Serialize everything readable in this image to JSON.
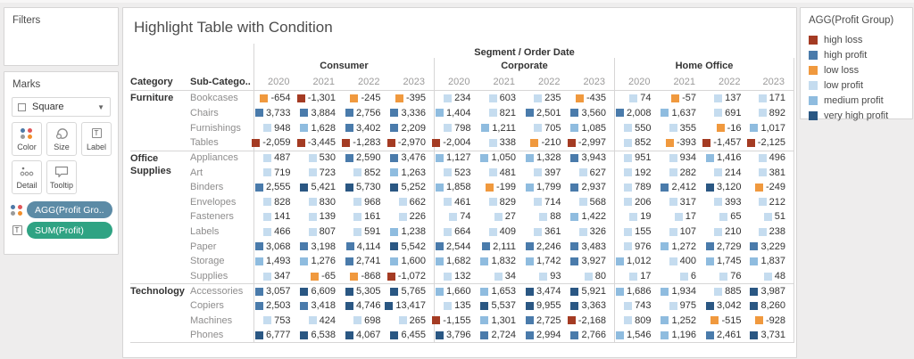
{
  "filters": {
    "title": "Filters"
  },
  "marks": {
    "title": "Marks",
    "mark_type": "Square",
    "buttons_row1": [
      {
        "label": "Color",
        "icon": "color-dots-icon"
      },
      {
        "label": "Size",
        "icon": "size-icon"
      },
      {
        "label": "Label",
        "icon": "label-icon"
      }
    ],
    "buttons_row2": [
      {
        "label": "Detail",
        "icon": "detail-icon"
      },
      {
        "label": "Tooltip",
        "icon": "tooltip-icon"
      }
    ],
    "pills": [
      {
        "label": "AGG(Profit Gro..",
        "color": "#5C8BA6",
        "icon": "color-dots-icon"
      },
      {
        "label": "SUM(Profit)",
        "color": "#2FA383",
        "icon": "text-icon"
      }
    ]
  },
  "sheet": {
    "title": "Highlight Table with Condition",
    "axis_title": "Segment / Order Date",
    "segments": [
      "Consumer",
      "Corporate",
      "Home Office"
    ],
    "years": [
      "2020",
      "2021",
      "2022",
      "2023"
    ],
    "category_header": "Category",
    "subcategory_header": "Sub-Catego..",
    "groups": [
      {
        "category": "Furniture",
        "rows": [
          {
            "name": "Bookcases",
            "cells": [
              [
                "-654",
                "LL"
              ],
              [
                "-1,301",
                "HL"
              ],
              [
                "-245",
                "LL"
              ],
              [
                "-395",
                "LL"
              ],
              [
                "234",
                "LP"
              ],
              [
                "603",
                "LP"
              ],
              [
                "235",
                "LP"
              ],
              [
                "-435",
                "LL"
              ],
              [
                "74",
                "LP"
              ],
              [
                "-57",
                "LL"
              ],
              [
                "137",
                "LP"
              ],
              [
                "171",
                "LP"
              ]
            ]
          },
          {
            "name": "Chairs",
            "cells": [
              [
                "3,733",
                "HP"
              ],
              [
                "3,884",
                "HP"
              ],
              [
                "2,756",
                "HP"
              ],
              [
                "3,336",
                "HP"
              ],
              [
                "1,404",
                "MP"
              ],
              [
                "821",
                "LP"
              ],
              [
                "2,501",
                "HP"
              ],
              [
                "3,560",
                "HP"
              ],
              [
                "2,008",
                "HP"
              ],
              [
                "1,637",
                "MP"
              ],
              [
                "691",
                "LP"
              ],
              [
                "892",
                "LP"
              ]
            ]
          },
          {
            "name": "Furnishings",
            "cells": [
              [
                "948",
                "LP"
              ],
              [
                "1,628",
                "MP"
              ],
              [
                "3,402",
                "HP"
              ],
              [
                "2,209",
                "HP"
              ],
              [
                "798",
                "LP"
              ],
              [
                "1,211",
                "MP"
              ],
              [
                "705",
                "LP"
              ],
              [
                "1,085",
                "MP"
              ],
              [
                "550",
                "LP"
              ],
              [
                "355",
                "LP"
              ],
              [
                "-16",
                "LL"
              ],
              [
                "1,017",
                "MP"
              ]
            ]
          },
          {
            "name": "Tables",
            "cells": [
              [
                "-2,059",
                "HL"
              ],
              [
                "-3,445",
                "HL"
              ],
              [
                "-1,283",
                "HL"
              ],
              [
                "-2,970",
                "HL"
              ],
              [
                "-2,004",
                "HL"
              ],
              [
                "338",
                "LP"
              ],
              [
                "-210",
                "LL"
              ],
              [
                "-2,997",
                "HL"
              ],
              [
                "852",
                "LP"
              ],
              [
                "-393",
                "LL"
              ],
              [
                "-1,457",
                "HL"
              ],
              [
                "-2,125",
                "HL"
              ]
            ]
          }
        ]
      },
      {
        "category": "Office Supplies",
        "rows": [
          {
            "name": "Appliances",
            "cells": [
              [
                "487",
                "LP"
              ],
              [
                "530",
                "LP"
              ],
              [
                "2,590",
                "HP"
              ],
              [
                "3,476",
                "HP"
              ],
              [
                "1,127",
                "MP"
              ],
              [
                "1,050",
                "MP"
              ],
              [
                "1,328",
                "MP"
              ],
              [
                "3,943",
                "HP"
              ],
              [
                "951",
                "LP"
              ],
              [
                "934",
                "LP"
              ],
              [
                "1,416",
                "MP"
              ],
              [
                "496",
                "LP"
              ]
            ]
          },
          {
            "name": "Art",
            "cells": [
              [
                "719",
                "LP"
              ],
              [
                "723",
                "LP"
              ],
              [
                "852",
                "LP"
              ],
              [
                "1,263",
                "MP"
              ],
              [
                "523",
                "LP"
              ],
              [
                "481",
                "LP"
              ],
              [
                "397",
                "LP"
              ],
              [
                "627",
                "LP"
              ],
              [
                "192",
                "LP"
              ],
              [
                "282",
                "LP"
              ],
              [
                "214",
                "LP"
              ],
              [
                "381",
                "LP"
              ]
            ]
          },
          {
            "name": "Binders",
            "cells": [
              [
                "2,555",
                "HP"
              ],
              [
                "5,421",
                "VHP"
              ],
              [
                "5,730",
                "VHP"
              ],
              [
                "5,252",
                "VHP"
              ],
              [
                "1,858",
                "MP"
              ],
              [
                "-199",
                "LL"
              ],
              [
                "1,799",
                "MP"
              ],
              [
                "2,937",
                "HP"
              ],
              [
                "789",
                "LP"
              ],
              [
                "2,412",
                "HP"
              ],
              [
                "3,120",
                "VHP"
              ],
              [
                "-249",
                "LL"
              ]
            ]
          },
          {
            "name": "Envelopes",
            "cells": [
              [
                "828",
                "LP"
              ],
              [
                "830",
                "LP"
              ],
              [
                "968",
                "LP"
              ],
              [
                "662",
                "LP"
              ],
              [
                "461",
                "LP"
              ],
              [
                "829",
                "LP"
              ],
              [
                "714",
                "LP"
              ],
              [
                "568",
                "LP"
              ],
              [
                "206",
                "LP"
              ],
              [
                "317",
                "LP"
              ],
              [
                "393",
                "LP"
              ],
              [
                "212",
                "LP"
              ]
            ]
          },
          {
            "name": "Fasteners",
            "cells": [
              [
                "141",
                "LP"
              ],
              [
                "139",
                "LP"
              ],
              [
                "161",
                "LP"
              ],
              [
                "226",
                "LP"
              ],
              [
                "74",
                "LP"
              ],
              [
                "27",
                "LP"
              ],
              [
                "88",
                "LP"
              ],
              [
                "1,422",
                "MP"
              ],
              [
                "19",
                "LP"
              ],
              [
                "17",
                "LP"
              ],
              [
                "65",
                "LP"
              ],
              [
                "51",
                "LP"
              ]
            ]
          },
          {
            "name": "Labels",
            "cells": [
              [
                "466",
                "LP"
              ],
              [
                "807",
                "LP"
              ],
              [
                "591",
                "LP"
              ],
              [
                "1,238",
                "MP"
              ],
              [
                "664",
                "LP"
              ],
              [
                "409",
                "LP"
              ],
              [
                "361",
                "LP"
              ],
              [
                "326",
                "LP"
              ],
              [
                "155",
                "LP"
              ],
              [
                "107",
                "LP"
              ],
              [
                "210",
                "LP"
              ],
              [
                "238",
                "LP"
              ]
            ]
          },
          {
            "name": "Paper",
            "cells": [
              [
                "3,068",
                "HP"
              ],
              [
                "3,198",
                "HP"
              ],
              [
                "4,114",
                "HP"
              ],
              [
                "5,542",
                "VHP"
              ],
              [
                "2,544",
                "HP"
              ],
              [
                "2,111",
                "HP"
              ],
              [
                "2,246",
                "HP"
              ],
              [
                "3,483",
                "HP"
              ],
              [
                "976",
                "LP"
              ],
              [
                "1,272",
                "MP"
              ],
              [
                "2,729",
                "HP"
              ],
              [
                "3,229",
                "HP"
              ]
            ]
          },
          {
            "name": "Storage",
            "cells": [
              [
                "1,493",
                "MP"
              ],
              [
                "1,276",
                "MP"
              ],
              [
                "2,741",
                "HP"
              ],
              [
                "1,600",
                "MP"
              ],
              [
                "1,682",
                "MP"
              ],
              [
                "1,832",
                "MP"
              ],
              [
                "1,742",
                "MP"
              ],
              [
                "3,927",
                "HP"
              ],
              [
                "1,012",
                "MP"
              ],
              [
                "400",
                "LP"
              ],
              [
                "1,745",
                "MP"
              ],
              [
                "1,837",
                "MP"
              ]
            ]
          },
          {
            "name": "Supplies",
            "cells": [
              [
                "347",
                "LP"
              ],
              [
                "-65",
                "LL"
              ],
              [
                "-868",
                "LL"
              ],
              [
                "-1,072",
                "HL"
              ],
              [
                "132",
                "LP"
              ],
              [
                "34",
                "LP"
              ],
              [
                "93",
                "LP"
              ],
              [
                "80",
                "LP"
              ],
              [
                "17",
                "LP"
              ],
              [
                "6",
                "LP"
              ],
              [
                "76",
                "LP"
              ],
              [
                "48",
                "LP"
              ]
            ]
          }
        ]
      },
      {
        "category": "Technology",
        "rows": [
          {
            "name": "Accessories",
            "cells": [
              [
                "3,057",
                "HP"
              ],
              [
                "6,609",
                "VHP"
              ],
              [
                "5,305",
                "VHP"
              ],
              [
                "5,765",
                "VHP"
              ],
              [
                "1,660",
                "MP"
              ],
              [
                "1,653",
                "MP"
              ],
              [
                "3,474",
                "VHP"
              ],
              [
                "5,921",
                "VHP"
              ],
              [
                "1,686",
                "MP"
              ],
              [
                "1,934",
                "MP"
              ],
              [
                "885",
                "LP"
              ],
              [
                "3,987",
                "VHP"
              ]
            ]
          },
          {
            "name": "Copiers",
            "cells": [
              [
                "2,503",
                "HP"
              ],
              [
                "3,418",
                "HP"
              ],
              [
                "4,746",
                "VHP"
              ],
              [
                "13,417",
                "VHP"
              ],
              [
                "135",
                "LP"
              ],
              [
                "5,537",
                "VHP"
              ],
              [
                "9,955",
                "VHP"
              ],
              [
                "3,363",
                "VHP"
              ],
              [
                "743",
                "LP"
              ],
              [
                "975",
                "LP"
              ],
              [
                "3,042",
                "VHP"
              ],
              [
                "8,260",
                "VHP"
              ]
            ]
          },
          {
            "name": "Machines",
            "cells": [
              [
                "753",
                "LP"
              ],
              [
                "424",
                "LP"
              ],
              [
                "698",
                "LP"
              ],
              [
                "265",
                "LP"
              ],
              [
                "-1,155",
                "HL"
              ],
              [
                "1,301",
                "MP"
              ],
              [
                "2,725",
                "HP"
              ],
              [
                "-2,168",
                "HL"
              ],
              [
                "809",
                "LP"
              ],
              [
                "1,252",
                "MP"
              ],
              [
                "-515",
                "LL"
              ],
              [
                "-928",
                "LL"
              ]
            ]
          },
          {
            "name": "Phones",
            "cells": [
              [
                "6,777",
                "VHP"
              ],
              [
                "6,538",
                "VHP"
              ],
              [
                "4,067",
                "VHP"
              ],
              [
                "6,455",
                "VHP"
              ],
              [
                "3,796",
                "VHP"
              ],
              [
                "2,724",
                "HP"
              ],
              [
                "2,994",
                "HP"
              ],
              [
                "2,766",
                "HP"
              ],
              [
                "1,546",
                "MP"
              ],
              [
                "1,196",
                "MP"
              ],
              [
                "2,461",
                "HP"
              ],
              [
                "3,731",
                "VHP"
              ]
            ]
          }
        ]
      }
    ]
  },
  "legend": {
    "title": "AGG(Profit Group)",
    "items": [
      {
        "label": "high loss",
        "key": "HL"
      },
      {
        "label": "high profit",
        "key": "HP"
      },
      {
        "label": "low loss",
        "key": "LL"
      },
      {
        "label": "low profit",
        "key": "LP"
      },
      {
        "label": "medium profit",
        "key": "MP"
      },
      {
        "label": "very high profit",
        "key": "VHP"
      }
    ]
  },
  "palette": {
    "HL": "#A43B23",
    "HP": "#4A7BAB",
    "LL": "#F0993E",
    "LP": "#C5DCEF",
    "MP": "#8FBCDF",
    "VHP": "#2A5783"
  }
}
